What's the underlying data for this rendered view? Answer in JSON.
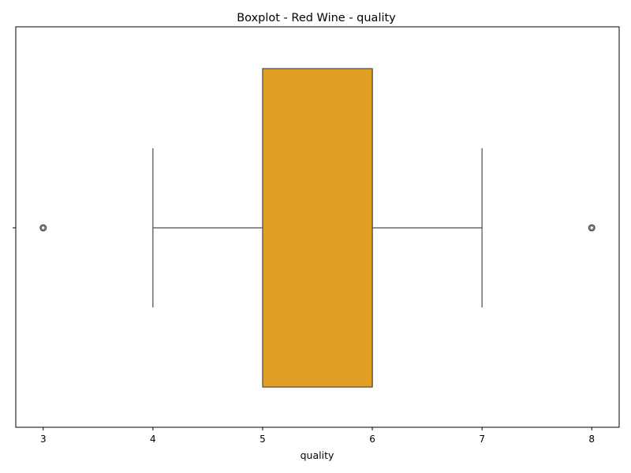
{
  "chart_data": {
    "type": "box",
    "title": "Boxplot - Red Wine - quality",
    "xlabel": "quality",
    "ylabel": "",
    "xlim": [
      2.75,
      8.25
    ],
    "xticks": [
      "3",
      "4",
      "5",
      "6",
      "7",
      "8"
    ],
    "xtick_values": [
      3,
      4,
      5,
      6,
      7,
      8
    ],
    "grid": false,
    "orientation": "horizontal",
    "box": {
      "whisker_low": 4,
      "q1": 5,
      "median": 6,
      "q3": 6,
      "whisker_high": 7
    },
    "outliers": [
      3,
      8
    ],
    "colors": {
      "box_fill": "#e09e22",
      "line": "#4d4d4d",
      "axis": "#000000",
      "outlier_edge": "#4d4d4d"
    }
  }
}
